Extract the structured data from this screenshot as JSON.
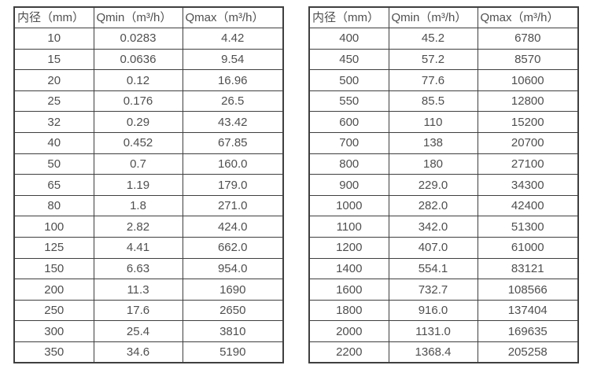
{
  "colors": {
    "background": "#ffffff",
    "border": "#3f3f3f",
    "text": "#4f4f4f"
  },
  "tables": [
    {
      "name": "diameter-flow-table-left",
      "headers": [
        "内径（mm）",
        "Qmin（m³/h）",
        "Qmax（m³/h）"
      ],
      "rows": [
        [
          "10",
          "0.0283",
          "4.42"
        ],
        [
          "15",
          "0.0636",
          "9.54"
        ],
        [
          "20",
          "0.12",
          "16.96"
        ],
        [
          "25",
          "0.176",
          "26.5"
        ],
        [
          "32",
          "0.29",
          "43.42"
        ],
        [
          "40",
          "0.452",
          "67.85"
        ],
        [
          "50",
          "0.7",
          "160.0"
        ],
        [
          "65",
          "1.19",
          "179.0"
        ],
        [
          "80",
          "1.8",
          "271.0"
        ],
        [
          "100",
          "2.82",
          "424.0"
        ],
        [
          "125",
          "4.41",
          "662.0"
        ],
        [
          "150",
          "6.63",
          "954.0"
        ],
        [
          "200",
          "11.3",
          "1690"
        ],
        [
          "250",
          "17.6",
          "2650"
        ],
        [
          "300",
          "25.4",
          "3810"
        ],
        [
          "350",
          "34.6",
          "5190"
        ]
      ]
    },
    {
      "name": "diameter-flow-table-right",
      "headers": [
        "内径（mm）",
        "Qmin（m³/h）",
        "Qmax（m³/h）"
      ],
      "rows": [
        [
          "400",
          "45.2",
          "6780"
        ],
        [
          "450",
          "57.2",
          "8570"
        ],
        [
          "500",
          "77.6",
          "10600"
        ],
        [
          "550",
          "85.5",
          "12800"
        ],
        [
          "600",
          "110",
          "15200"
        ],
        [
          "700",
          "138",
          "20700"
        ],
        [
          "800",
          "180",
          "27100"
        ],
        [
          "900",
          "229.0",
          "34300"
        ],
        [
          "1000",
          "282.0",
          "42400"
        ],
        [
          "1100",
          "342.0",
          "51300"
        ],
        [
          "1200",
          "407.0",
          "61000"
        ],
        [
          "1400",
          "554.1",
          "83121"
        ],
        [
          "1600",
          "732.7",
          "108566"
        ],
        [
          "1800",
          "916.0",
          "137404"
        ],
        [
          "2000",
          "1131.0",
          "169635"
        ],
        [
          "2200",
          "1368.4",
          "205258"
        ]
      ]
    }
  ]
}
